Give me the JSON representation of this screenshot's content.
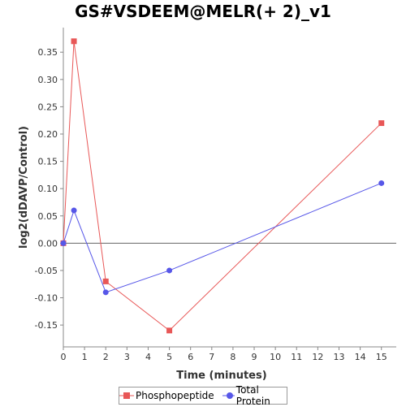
{
  "chart_data": {
    "type": "line",
    "title": "GS#VSDEEM@MELR(+ 2)_v1",
    "xlabel": "Time (minutes)",
    "ylabel": "log2(dDAVP/Control)",
    "xlim": [
      0,
      15.7
    ],
    "ylim": [
      -0.19,
      0.395
    ],
    "xticks": [
      0,
      1,
      2,
      3,
      4,
      5,
      6,
      7,
      8,
      9,
      10,
      11,
      12,
      13,
      14,
      15
    ],
    "yticks": [
      -0.15,
      -0.1,
      -0.05,
      0.0,
      0.05,
      0.1,
      0.15,
      0.2,
      0.25,
      0.3,
      0.35
    ],
    "ytick_labels": [
      "-0.15",
      "-0.10",
      "-0.05",
      "0.00",
      "0.05",
      "0.10",
      "0.15",
      "0.20",
      "0.25",
      "0.30",
      "0.35"
    ],
    "grid": false,
    "zero_line": true,
    "legend_position": "bottom",
    "series": [
      {
        "name": "Phosphopeptide",
        "color": "#e85757",
        "marker": "square",
        "x": [
          0,
          0.5,
          2,
          5,
          15
        ],
        "y": [
          0.0,
          0.37,
          -0.07,
          -0.16,
          0.22
        ]
      },
      {
        "name": "Total Protein",
        "color": "#5757e8",
        "marker": "circle",
        "x": [
          0,
          0.5,
          2,
          5,
          15
        ],
        "y": [
          0.0,
          0.06,
          -0.09,
          -0.05,
          0.11
        ]
      }
    ]
  }
}
